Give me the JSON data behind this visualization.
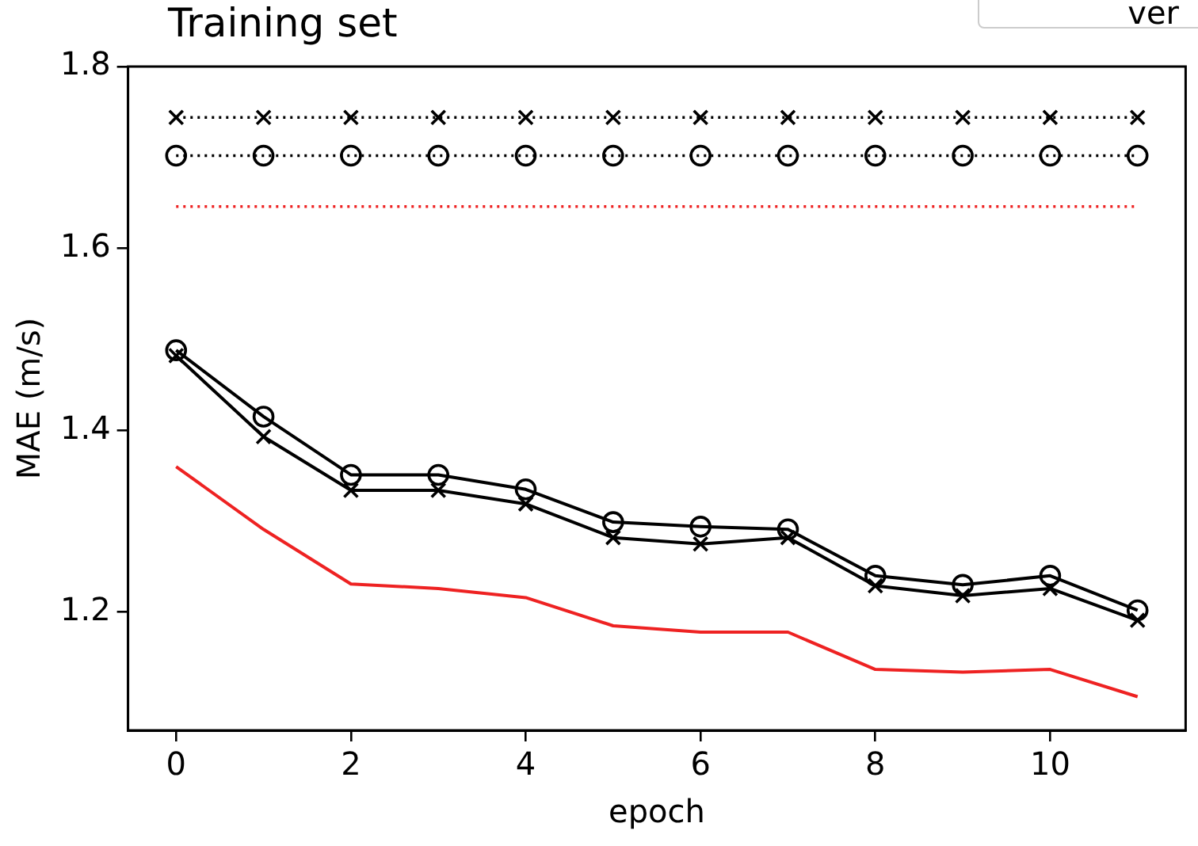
{
  "chart_data": {
    "type": "line",
    "title": "Training set",
    "xlabel": "epoch",
    "ylabel": "MAE (m/s)",
    "annotations": [
      "ver"
    ],
    "x": [
      0,
      1,
      2,
      3,
      4,
      5,
      6,
      7,
      8,
      9,
      10,
      11
    ],
    "xlim": [
      -0.55,
      11.55
    ],
    "xticks": [
      0,
      2,
      4,
      6,
      8,
      10
    ],
    "ylim": [
      1.07,
      1.8
    ],
    "yticks": [
      1.2,
      1.4,
      1.6,
      1.8
    ],
    "grid": false,
    "series": [
      {
        "color": "#000000",
        "marker": "cross",
        "line_style": "dotted",
        "values": [
          1.744,
          1.744,
          1.744,
          1.744,
          1.744,
          1.744,
          1.744,
          1.744,
          1.744,
          1.744,
          1.744,
          1.744
        ]
      },
      {
        "color": "#000000",
        "marker": "circle",
        "line_style": "dotted",
        "values": [
          1.702,
          1.702,
          1.702,
          1.702,
          1.702,
          1.702,
          1.702,
          1.702,
          1.702,
          1.702,
          1.702,
          1.702
        ]
      },
      {
        "color": "#ee2222",
        "marker": "none",
        "line_style": "dotted",
        "values": [
          1.646,
          1.646,
          1.646,
          1.646,
          1.646,
          1.646,
          1.646,
          1.646,
          1.646,
          1.646,
          1.646,
          1.646
        ]
      },
      {
        "color": "#000000",
        "marker": "circle",
        "line_style": "solid",
        "values": [
          1.488,
          1.415,
          1.351,
          1.351,
          1.335,
          1.299,
          1.294,
          1.291,
          1.24,
          1.23,
          1.24,
          1.202
        ]
      },
      {
        "color": "#000000",
        "marker": "cross",
        "line_style": "solid",
        "values": [
          1.482,
          1.393,
          1.334,
          1.334,
          1.319,
          1.282,
          1.275,
          1.282,
          1.229,
          1.218,
          1.226,
          1.191
        ]
      },
      {
        "color": "#ee2222",
        "marker": "none",
        "line_style": "solid",
        "values": [
          1.36,
          1.291,
          1.231,
          1.226,
          1.216,
          1.185,
          1.178,
          1.178,
          1.137,
          1.134,
          1.137,
          1.107
        ]
      }
    ]
  }
}
